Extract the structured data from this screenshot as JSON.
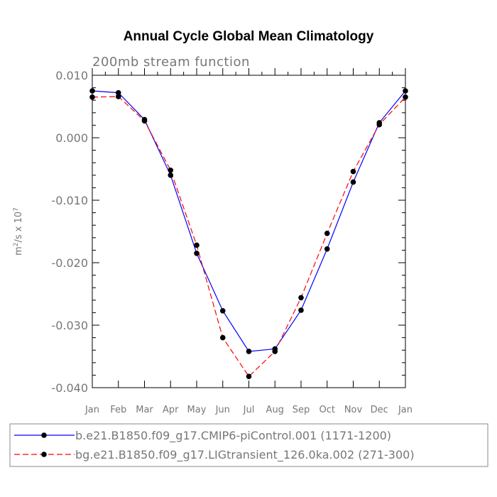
{
  "chart_data": {
    "type": "line",
    "title": "Annual Cycle Global Mean Climatology",
    "subtitle": "200mb stream function",
    "ylabel": "m",
    "ylabel_sup": "2",
    "ylabel_mid": "/s x 10",
    "ylabel_exp": "7",
    "xlabel": "",
    "categories": [
      "Jan",
      "Feb",
      "Mar",
      "Apr",
      "May",
      "Jun",
      "Jul",
      "Aug",
      "Sep",
      "Oct",
      "Nov",
      "Dec",
      "Jan"
    ],
    "ylim": [
      -0.04,
      0.01
    ],
    "yticks": [
      "0.010",
      "0.000",
      "-0.010",
      "-0.020",
      "-0.030",
      "-0.040"
    ],
    "ytick_values": [
      0.01,
      0.0,
      -0.01,
      -0.02,
      -0.03,
      -0.04
    ],
    "series": [
      {
        "name": "b.e21.B1850.f09_g17.CMIP6-piControl.001 (1171-1200)",
        "color": "#0000ff",
        "dash": "solid",
        "values": [
          0.0075,
          0.0072,
          0.0029,
          -0.006,
          -0.0185,
          -0.0277,
          -0.0342,
          -0.0338,
          -0.0276,
          -0.0178,
          -0.0071,
          0.0024,
          0.0075
        ]
      },
      {
        "name": "bg.e21.B1850.f09_g17.LIGtransient_126.0ka.002 (271-300)",
        "color": "#ff0000",
        "dash": "dashed",
        "values": [
          0.0065,
          0.0066,
          0.0027,
          -0.0052,
          -0.0172,
          -0.032,
          -0.0382,
          -0.0342,
          -0.0256,
          -0.0153,
          -0.0054,
          0.0021,
          0.0065
        ]
      }
    ]
  }
}
